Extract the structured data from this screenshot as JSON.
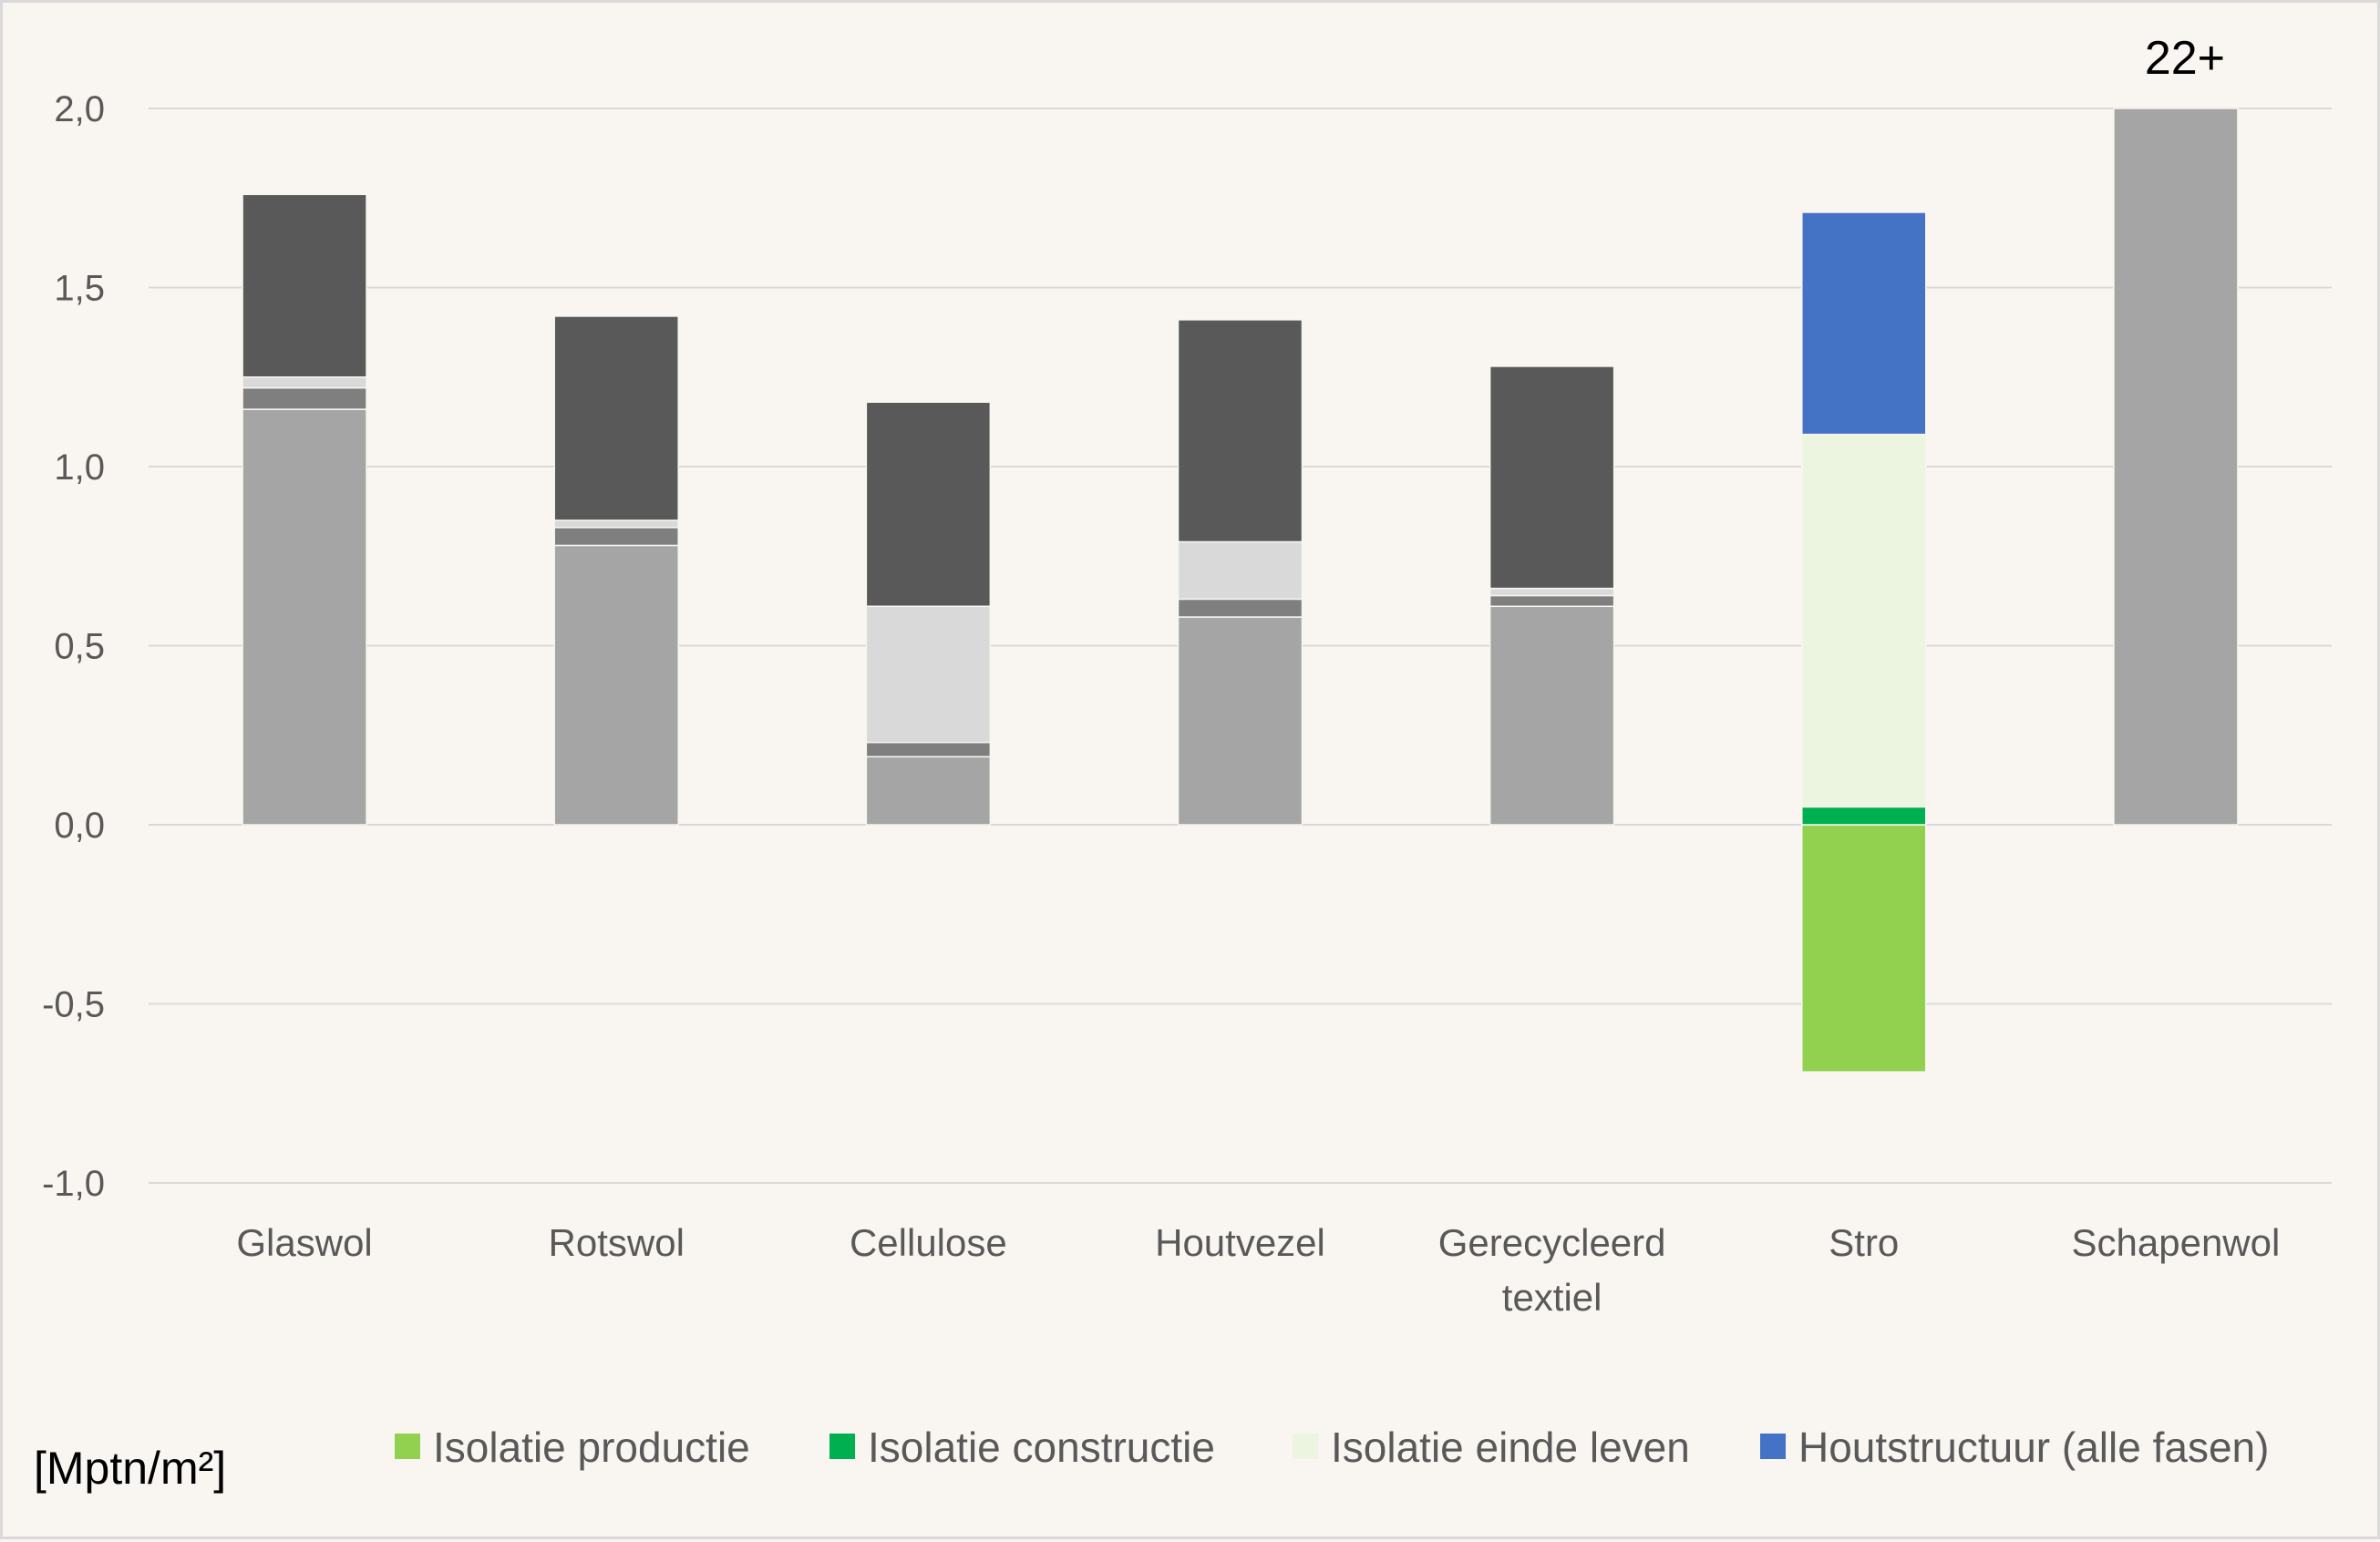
{
  "chart_data": {
    "type": "bar",
    "stacked": true,
    "title": "",
    "xlabel": "",
    "ylabel": "[Mptn/m²]",
    "ylim": [
      -1.0,
      2.0
    ],
    "yticks": [
      "2,0",
      "1,5",
      "1,0",
      "0,5",
      "0,0",
      "-0,5",
      "-1,0"
    ],
    "ytick_values": [
      2.0,
      1.5,
      1.0,
      0.5,
      0.0,
      -0.5,
      -1.0
    ],
    "grid": true,
    "legend_position": "bottom",
    "categories": [
      "Glaswol",
      "Rotswol",
      "Cellulose",
      "Houtvezel",
      "Gerecycleerd textiel",
      "Stro",
      "Schapenwol"
    ],
    "category_lines": [
      [
        "Glaswol"
      ],
      [
        "Rotswol"
      ],
      [
        "Cellulose"
      ],
      [
        "Houtvezel"
      ],
      [
        "Gerecycleerd",
        "textiel"
      ],
      [
        "Stro"
      ],
      [
        "Schapenwol"
      ]
    ],
    "series": [
      {
        "name": "",
        "color": "#a5a5a5",
        "values": [
          1.16,
          0.78,
          0.19,
          0.58,
          0.61,
          0,
          2.0
        ]
      },
      {
        "name": "",
        "color": "#7f7f7f",
        "values": [
          0.06,
          0.05,
          0.04,
          0.05,
          0.03,
          0,
          0
        ]
      },
      {
        "name": "",
        "color": "#d9d9d9",
        "values": [
          0.03,
          0.02,
          0.38,
          0.16,
          0.02,
          0,
          0
        ]
      },
      {
        "name": "",
        "color": "#595959",
        "values": [
          0.51,
          0.57,
          0.57,
          0.62,
          0.62,
          0,
          0
        ]
      },
      {
        "name": "Isolatie productie",
        "color": "#92d050",
        "values": [
          0,
          0,
          0,
          0,
          0,
          -0.69,
          0
        ]
      },
      {
        "name": "Isolatie constructie",
        "color": "#00b050",
        "values": [
          0,
          0,
          0,
          0,
          0,
          0.05,
          0
        ]
      },
      {
        "name": "Isolatie einde leven",
        "color": "#ebf5df",
        "values": [
          0,
          0,
          0,
          0,
          0,
          1.04,
          0
        ]
      },
      {
        "name": "Houtstructuur (alle fasen)",
        "color": "#4472c4",
        "values": [
          0,
          0,
          0,
          0,
          0,
          0.62,
          0
        ]
      }
    ],
    "annotations": [
      {
        "category": "Schapenwol",
        "text": "22+"
      }
    ],
    "legend": [
      {
        "label": "Isolatie productie",
        "color": "#92d050"
      },
      {
        "label": "Isolatie constructie",
        "color": "#00b050"
      },
      {
        "label": "Isolatie einde leven",
        "color": "#ebf5df"
      },
      {
        "label": "Houtstructuur (alle fasen)",
        "color": "#4472c4"
      }
    ],
    "colors": {
      "background": "#f9f6f1",
      "grid": "#d9d9d9",
      "axis_text": "#595959"
    }
  }
}
